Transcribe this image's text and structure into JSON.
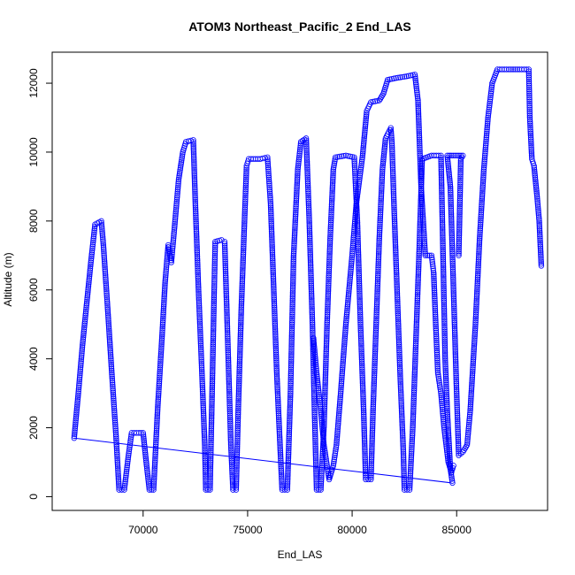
{
  "chart_data": {
    "type": "scatter",
    "title": "ATOM3 Northeast_Pacific_2 End_LAS",
    "xlabel": "End_LAS",
    "ylabel": "Altitude (m)",
    "xlim": [
      65650,
      89350
    ],
    "ylim": [
      -400,
      12900
    ],
    "x_ticks": [
      70000,
      75000,
      80000,
      85000
    ],
    "y_ticks": [
      0,
      2000,
      4000,
      6000,
      8000,
      10000,
      12000
    ],
    "x_tick_labels": [
      "70000",
      "75000",
      "80000",
      "85000"
    ],
    "y_tick_labels": [
      "0",
      "2000",
      "4000",
      "6000",
      "8000",
      "10000",
      "12000"
    ],
    "grid": false,
    "marker": "open-circle",
    "color": "#0000ff",
    "series": [
      {
        "points": [
          [
            66700,
            1700
          ],
          [
            66900,
            3000
          ],
          [
            67100,
            4400
          ],
          [
            67300,
            5600
          ],
          [
            67500,
            6800
          ],
          [
            67700,
            7900
          ],
          [
            68000,
            8000
          ],
          [
            68100,
            7300
          ],
          [
            68300,
            5500
          ],
          [
            68500,
            3600
          ],
          [
            68700,
            1800
          ],
          [
            68850,
            200
          ],
          [
            69100,
            200
          ],
          [
            69300,
            1200
          ],
          [
            69450,
            1850
          ],
          [
            69800,
            1850
          ],
          [
            70000,
            1850
          ],
          [
            70150,
            1000
          ],
          [
            70300,
            200
          ],
          [
            70500,
            200
          ],
          [
            70700,
            2600
          ],
          [
            70900,
            4600
          ],
          [
            71050,
            6200
          ],
          [
            71200,
            7300
          ],
          [
            71350,
            6800
          ],
          [
            71500,
            7800
          ],
          [
            71700,
            9200
          ],
          [
            71900,
            10000
          ],
          [
            72050,
            10300
          ],
          [
            72400,
            10350
          ],
          [
            72500,
            8500
          ],
          [
            72650,
            6000
          ],
          [
            72800,
            3800
          ],
          [
            72950,
            1500
          ],
          [
            73000,
            200
          ],
          [
            73200,
            200
          ],
          [
            73300,
            3000
          ],
          [
            73400,
            6000
          ],
          [
            73450,
            7400
          ],
          [
            73750,
            7450
          ],
          [
            73900,
            7400
          ],
          [
            74000,
            5500
          ],
          [
            74100,
            3500
          ],
          [
            74200,
            1500
          ],
          [
            74300,
            200
          ],
          [
            74450,
            200
          ],
          [
            74550,
            2500
          ],
          [
            74700,
            5500
          ],
          [
            74850,
            8000
          ],
          [
            74950,
            9600
          ],
          [
            75050,
            9800
          ],
          [
            75600,
            9800
          ],
          [
            75950,
            9850
          ],
          [
            76100,
            8500
          ],
          [
            76250,
            6000
          ],
          [
            76400,
            3500
          ],
          [
            76550,
            1500
          ],
          [
            76650,
            200
          ],
          [
            76900,
            200
          ],
          [
            77050,
            3000
          ],
          [
            77200,
            7000
          ],
          [
            77400,
            9500
          ],
          [
            77550,
            10300
          ],
          [
            77800,
            10400
          ],
          [
            77950,
            8000
          ],
          [
            78100,
            5000
          ],
          [
            78200,
            2500
          ],
          [
            78300,
            200
          ],
          [
            78500,
            200
          ],
          [
            78650,
            2000
          ],
          [
            78800,
            5000
          ],
          [
            78950,
            7500
          ],
          [
            79100,
            9500
          ],
          [
            79200,
            9850
          ],
          [
            79700,
            9900
          ],
          [
            80100,
            9850
          ],
          [
            80250,
            8000
          ],
          [
            80400,
            5000
          ],
          [
            80550,
            2500
          ],
          [
            80650,
            500
          ],
          [
            80900,
            500
          ],
          [
            81000,
            2500
          ],
          [
            81150,
            5000
          ],
          [
            81300,
            7500
          ],
          [
            81450,
            9500
          ],
          [
            81600,
            10400
          ],
          [
            81850,
            10700
          ],
          [
            81900,
            10300
          ],
          [
            82000,
            8500
          ],
          [
            82150,
            6000
          ],
          [
            82300,
            3500
          ],
          [
            82450,
            1300
          ],
          [
            82500,
            200
          ],
          [
            82750,
            200
          ],
          [
            82900,
            2000
          ],
          [
            83050,
            4500
          ],
          [
            83200,
            7000
          ],
          [
            83350,
            9800
          ],
          [
            83800,
            9900
          ],
          [
            84250,
            9900
          ],
          [
            84350,
            7000
          ],
          [
            84450,
            4000
          ],
          [
            84550,
            2500
          ],
          [
            84700,
            800
          ],
          [
            84800,
            400
          ],
          [
            78150,
            4600
          ],
          [
            78300,
            3600
          ],
          [
            78500,
            2500
          ],
          [
            78650,
            1500
          ],
          [
            78900,
            500
          ],
          [
            79100,
            900
          ],
          [
            79250,
            1500
          ],
          [
            79450,
            3000
          ],
          [
            79700,
            5000
          ],
          [
            80000,
            7000
          ],
          [
            80200,
            8500
          ],
          [
            80500,
            9900
          ],
          [
            80700,
            11200
          ],
          [
            80900,
            11450
          ],
          [
            81300,
            11500
          ],
          [
            81500,
            11700
          ],
          [
            81700,
            12100
          ],
          [
            82100,
            12150
          ],
          [
            82600,
            12200
          ],
          [
            83000,
            12250
          ],
          [
            83150,
            11500
          ],
          [
            83300,
            9000
          ],
          [
            83500,
            7000
          ],
          [
            83800,
            7000
          ],
          [
            83900,
            6500
          ],
          [
            84000,
            5000
          ],
          [
            84100,
            3600
          ],
          [
            84250,
            3000
          ],
          [
            84400,
            2000
          ],
          [
            84600,
            1000
          ],
          [
            84750,
            700
          ],
          [
            84850,
            900
          ],
          [
            85100,
            7000
          ],
          [
            85200,
            9800
          ],
          [
            85300,
            9900
          ],
          [
            84550,
            9900
          ],
          [
            84700,
            9000
          ],
          [
            84800,
            7000
          ],
          [
            84900,
            5000
          ],
          [
            85000,
            3000
          ],
          [
            85100,
            1200
          ],
          [
            85300,
            1300
          ],
          [
            85500,
            1500
          ],
          [
            85650,
            2500
          ],
          [
            85900,
            5000
          ],
          [
            86100,
            7500
          ],
          [
            86300,
            9500
          ],
          [
            86500,
            11000
          ],
          [
            86700,
            12000
          ],
          [
            86950,
            12400
          ],
          [
            87500,
            12400
          ],
          [
            88000,
            12400
          ],
          [
            88450,
            12400
          ],
          [
            88500,
            11000
          ],
          [
            88600,
            9800
          ],
          [
            88700,
            9600
          ],
          [
            88850,
            8700
          ],
          [
            88950,
            8000
          ],
          [
            89050,
            6700
          ]
        ]
      }
    ],
    "connector_lines": [
      {
        "from": [
          66700,
          1700
        ],
        "to": [
          84750,
          400
        ]
      }
    ]
  }
}
